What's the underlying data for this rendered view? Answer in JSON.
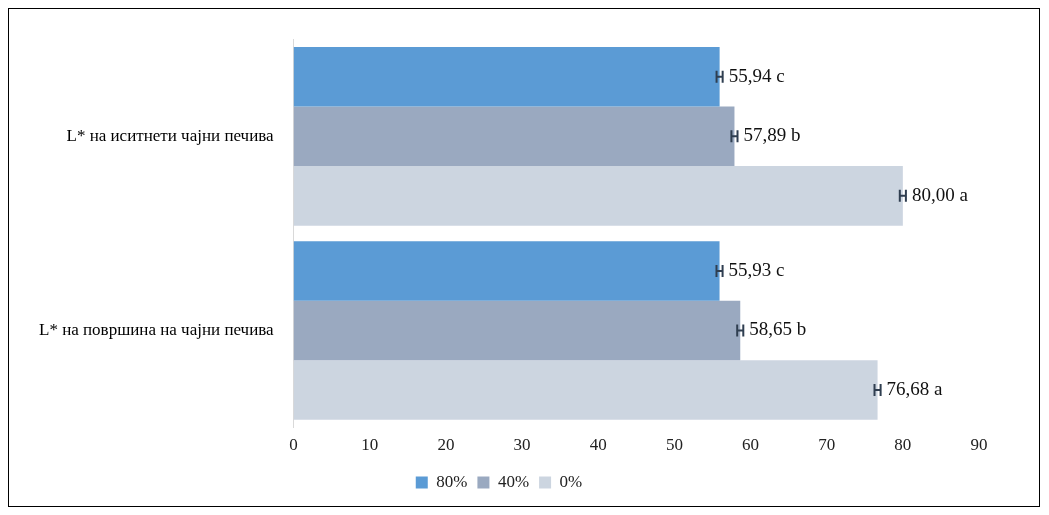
{
  "chart_data": {
    "type": "bar",
    "orientation": "horizontal",
    "categories": [
      "L* на иситнети чајни печива",
      "L* на површина на чајни печива"
    ],
    "series": [
      {
        "name": "80%",
        "color": "#5b9bd5",
        "values": [
          55.94,
          55.93
        ],
        "errors": [
          0.4,
          0.4
        ],
        "value_labels": [
          "55,94 c",
          "55,93 c"
        ]
      },
      {
        "name": "40%",
        "color": "#9aa9c0",
        "values": [
          57.89,
          58.65
        ],
        "errors": [
          0.4,
          0.4
        ],
        "value_labels": [
          "57,89 b",
          "58,65 b"
        ]
      },
      {
        "name": "0%",
        "color": "#ccd5e0",
        "values": [
          80.0,
          76.68
        ],
        "errors": [
          0.4,
          0.4
        ],
        "value_labels": [
          "80,00 a",
          "76,68 a"
        ]
      }
    ],
    "xlim": [
      0,
      90
    ],
    "xticks": [
      0,
      10,
      20,
      30,
      40,
      50,
      60,
      70,
      80,
      90
    ],
    "grid": false,
    "legend": "bottom"
  }
}
